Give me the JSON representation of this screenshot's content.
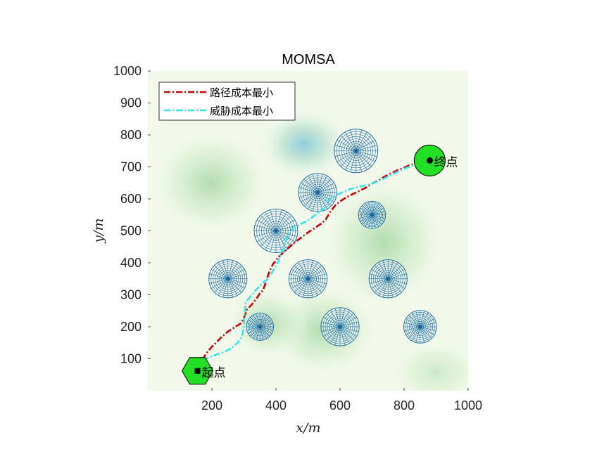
{
  "chart_data": {
    "type": "line",
    "title": "MOMSA",
    "xlabel": "x/m",
    "ylabel": "y/m",
    "xlim": [
      0,
      1000
    ],
    "ylim": [
      0,
      1000
    ],
    "xticks": [
      200,
      400,
      600,
      800,
      1000
    ],
    "yticks": [
      100,
      200,
      300,
      400,
      500,
      600,
      700,
      800,
      900,
      1000
    ],
    "legend_position": "top-left",
    "series": [
      {
        "name": "路径成本最小",
        "color": "#cc0000",
        "style": "dash-dot",
        "x": [
          155,
          160,
          170,
          185,
          200,
          215,
          230,
          250,
          270,
          290,
          300,
          310,
          325,
          340,
          350,
          360,
          370,
          380,
          390,
          405,
          420,
          440,
          460,
          480,
          500,
          520,
          540,
          555,
          570,
          585,
          600,
          620,
          640,
          660,
          680,
          700,
          720,
          740,
          760,
          780,
          800,
          820,
          840,
          860,
          875,
          880
        ],
        "y": [
          62,
          75,
          98,
          120,
          138,
          152,
          168,
          185,
          198,
          210,
          228,
          255,
          270,
          290,
          305,
          315,
          345,
          375,
          395,
          415,
          430,
          448,
          465,
          480,
          495,
          508,
          522,
          535,
          560,
          580,
          592,
          605,
          615,
          625,
          635,
          648,
          658,
          670,
          680,
          690,
          698,
          706,
          712,
          716,
          718,
          720
        ]
      },
      {
        "name": "威胁成本最小",
        "color": "#33e3f0",
        "style": "dash-dot",
        "x": [
          155,
          165,
          180,
          200,
          220,
          240,
          260,
          280,
          295,
          300,
          305,
          320,
          340,
          360,
          375,
          385,
          395,
          405,
          415,
          425,
          435,
          440,
          450,
          470,
          490,
          510,
          530,
          550,
          560,
          570,
          590,
          610,
          630,
          650,
          670,
          690,
          710,
          730,
          750,
          770,
          790,
          810,
          830,
          850,
          870,
          880
        ],
        "y": [
          62,
          88,
          100,
          108,
          115,
          122,
          132,
          150,
          170,
          210,
          275,
          295,
          318,
          338,
          350,
          365,
          382,
          400,
          425,
          452,
          478,
          492,
          505,
          518,
          528,
          540,
          555,
          570,
          585,
          600,
          612,
          622,
          630,
          636,
          640,
          645,
          652,
          660,
          670,
          680,
          690,
          698,
          706,
          712,
          716,
          720
        ]
      }
    ],
    "threats": [
      {
        "x": 650,
        "y": 750,
        "r": 80
      },
      {
        "x": 530,
        "y": 620,
        "r": 70
      },
      {
        "x": 700,
        "y": 550,
        "r": 50
      },
      {
        "x": 400,
        "y": 500,
        "r": 80
      },
      {
        "x": 250,
        "y": 350,
        "r": 70
      },
      {
        "x": 500,
        "y": 350,
        "r": 70
      },
      {
        "x": 750,
        "y": 350,
        "r": 70
      },
      {
        "x": 350,
        "y": 200,
        "r": 50
      },
      {
        "x": 600,
        "y": 200,
        "r": 70
      },
      {
        "x": 850,
        "y": 200,
        "r": 60
      }
    ],
    "start": {
      "x": 155,
      "y": 62,
      "label": "起点"
    },
    "goal": {
      "x": 880,
      "y": 720,
      "label": "终点"
    }
  }
}
